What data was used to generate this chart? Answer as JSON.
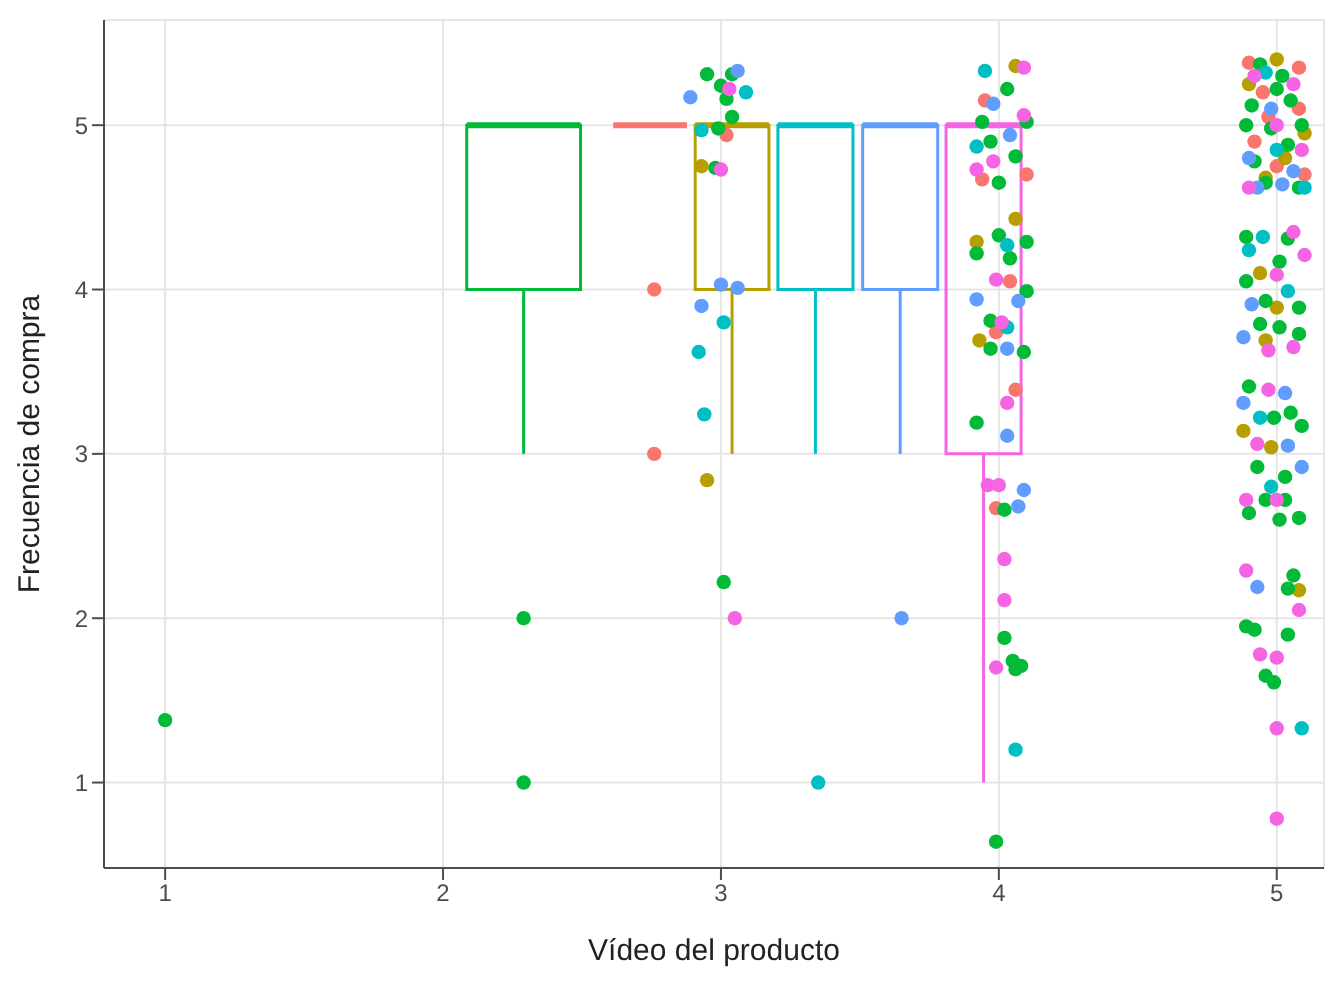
{
  "chart_data": {
    "type": "scatter",
    "xlabel": "Vídeo del producto",
    "ylabel": "Frecuencia de compra",
    "xlim": [
      0.78,
      5.17
    ],
    "xticks": [
      1,
      2,
      3,
      4,
      5
    ],
    "ylim": [
      0.48,
      5.64
    ],
    "yticks": [
      1,
      2,
      3,
      4,
      5
    ],
    "grid": true,
    "marker": "circle",
    "legend": false,
    "series": [
      {
        "type": "box",
        "color": "#00ba38",
        "x": [
          2.29
        ],
        "boxes": [
          {
            "low": 3,
            "q1": 4,
            "median": 5,
            "q3": 5,
            "high": 5
          }
        ]
      },
      {
        "type": "box",
        "color": "#f8766d",
        "x": [
          2.745
        ],
        "boxes": [
          {
            "low": 5,
            "q1": 5,
            "median": 5,
            "q3": 5,
            "high": 5
          }
        ]
      },
      {
        "type": "box",
        "color": "#b79f00",
        "x": [
          3.04
        ],
        "boxes": [
          {
            "low": 3,
            "q1": 4,
            "median": 5,
            "q3": 5,
            "high": 5
          }
        ]
      },
      {
        "type": "box",
        "color": "#00bfc4",
        "x": [
          3.34
        ],
        "boxes": [
          {
            "low": 3,
            "q1": 4,
            "median": 5,
            "q3": 5,
            "high": 5
          }
        ]
      },
      {
        "type": "box",
        "color": "#619cff",
        "x": [
          3.645
        ],
        "boxes": [
          {
            "low": 3,
            "q1": 4,
            "median": 5,
            "q3": 5,
            "high": 5
          }
        ]
      },
      {
        "type": "box",
        "color": "#f564e3",
        "x": [
          3.945
        ],
        "boxes": [
          {
            "low": 1,
            "q1": 3,
            "median": 5,
            "q3": 5,
            "high": 5
          }
        ]
      },
      {
        "type": "scatter",
        "color": "#f8766d",
        "x": [
          3.02,
          2.76,
          2.76,
          3.95,
          3.94,
          4.1,
          4.04,
          3.99,
          4.06,
          3.99,
          4.9,
          5.08,
          4.95,
          5.08,
          4.92,
          5.0,
          5.1,
          4.97
        ],
        "values": [
          4.94,
          4.0,
          3.0,
          5.15,
          4.67,
          4.7,
          4.05,
          3.74,
          3.39,
          2.67,
          5.38,
          5.35,
          5.2,
          5.1,
          4.9,
          4.75,
          4.7,
          5.05
        ]
      },
      {
        "type": "scatter",
        "color": "#b79f00",
        "x": [
          2.93,
          2.95,
          4.06,
          4.06,
          3.92,
          3.93,
          4.94,
          5.0,
          4.96,
          4.88,
          4.98,
          5.08,
          5.0,
          4.9,
          5.03,
          5.1,
          4.96
        ],
        "values": [
          4.75,
          2.84,
          5.36,
          4.43,
          4.29,
          3.69,
          4.1,
          3.89,
          3.69,
          3.14,
          3.04,
          2.17,
          5.4,
          5.25,
          4.8,
          4.95,
          4.68
        ]
      },
      {
        "type": "scatter",
        "color": "#00ba38",
        "x": [
          1,
          2.29,
          2.29,
          2.95,
          3.04,
          3.0,
          3.02,
          3.04,
          2.99,
          2.98,
          3.01,
          4.03,
          3.94,
          4.1,
          3.97,
          4.06,
          4.0,
          4.0,
          4.1,
          3.92,
          4.04,
          4.1,
          3.97,
          3.97,
          4.09,
          3.92,
          4.02,
          4.02,
          4.05,
          4.08,
          4.06,
          3.99,
          4.89,
          5.04,
          5.01,
          4.89,
          4.96,
          5.08,
          4.94,
          5.01,
          5.08,
          4.9,
          4.99,
          5.05,
          5.09,
          4.93,
          5.03,
          4.96,
          5.03,
          4.9,
          5.08,
          5.01,
          5.06,
          5.04,
          4.89,
          4.92,
          5.04,
          4.96,
          4.99,
          4.94,
          5.02,
          4.91,
          5.05,
          4.98,
          5.09,
          4.92,
          5.04,
          4.96,
          5.08,
          5.0,
          4.89
        ],
        "values": [
          1.38,
          2.0,
          1.0,
          5.31,
          5.31,
          5.24,
          5.16,
          5.05,
          4.98,
          4.74,
          2.22,
          5.22,
          5.02,
          5.02,
          4.9,
          4.81,
          4.65,
          4.33,
          4.29,
          4.22,
          4.19,
          3.99,
          3.81,
          3.64,
          3.62,
          3.19,
          2.66,
          1.88,
          1.74,
          1.71,
          1.69,
          0.64,
          4.32,
          4.31,
          4.17,
          4.05,
          3.93,
          3.89,
          3.79,
          3.77,
          3.73,
          3.41,
          3.22,
          3.25,
          3.17,
          2.92,
          2.86,
          2.72,
          2.72,
          2.64,
          2.61,
          2.6,
          2.26,
          2.18,
          1.95,
          1.93,
          1.9,
          1.65,
          1.61,
          5.37,
          5.3,
          5.12,
          5.15,
          4.98,
          5.0,
          4.78,
          4.88,
          4.65,
          4.62,
          5.22,
          5.0
        ]
      },
      {
        "type": "scatter",
        "color": "#00bfc4",
        "x": [
          3.09,
          2.93,
          3.01,
          2.92,
          2.94,
          3.35,
          3.95,
          3.92,
          4.03,
          4.03,
          4.06,
          4.9,
          4.95,
          5.04,
          4.94,
          4.98,
          5.09,
          4.96,
          5.1,
          5.0
        ],
        "values": [
          5.2,
          4.97,
          3.8,
          3.62,
          3.24,
          1.0,
          5.33,
          4.87,
          4.27,
          3.77,
          1.2,
          4.24,
          4.32,
          3.99,
          3.22,
          2.8,
          1.33,
          5.32,
          4.62,
          4.85
        ]
      },
      {
        "type": "scatter",
        "color": "#619cff",
        "x": [
          3.06,
          2.89,
          3.0,
          3.06,
          2.93,
          3.65,
          3.98,
          4.04,
          3.92,
          4.07,
          4.03,
          4.03,
          4.09,
          4.07,
          4.91,
          4.88,
          5.03,
          4.88,
          5.04,
          5.09,
          4.93,
          4.98,
          4.9,
          5.06,
          5.02,
          4.93
        ],
        "values": [
          5.33,
          5.17,
          4.03,
          4.01,
          3.9,
          2.0,
          5.13,
          4.94,
          3.94,
          3.93,
          3.64,
          3.11,
          2.78,
          2.68,
          3.91,
          3.71,
          3.37,
          3.31,
          3.05,
          2.92,
          2.19,
          5.1,
          4.8,
          4.72,
          4.64,
          4.62
        ]
      },
      {
        "type": "scatter",
        "color": "#f564e3",
        "x": [
          3.03,
          3.0,
          3.05,
          4.09,
          4.09,
          3.92,
          3.98,
          3.99,
          4.01,
          4.03,
          3.96,
          4.0,
          4.02,
          4.02,
          3.99,
          5.06,
          5.1,
          5.0,
          4.97,
          5.06,
          4.97,
          4.93,
          4.89,
          5.0,
          4.89,
          5.08,
          4.94,
          5.0,
          5.0,
          5.0,
          4.92,
          5.06,
          4.9,
          5.09,
          5.0
        ],
        "values": [
          5.22,
          4.73,
          2.0,
          5.35,
          5.06,
          4.73,
          4.78,
          4.06,
          3.8,
          3.31,
          2.81,
          2.81,
          2.36,
          2.11,
          1.7,
          4.35,
          4.21,
          4.09,
          3.63,
          3.65,
          3.39,
          3.06,
          2.72,
          2.72,
          2.29,
          2.05,
          1.78,
          1.76,
          1.33,
          0.78,
          5.3,
          5.25,
          4.62,
          4.85,
          5.0
        ]
      }
    ]
  }
}
